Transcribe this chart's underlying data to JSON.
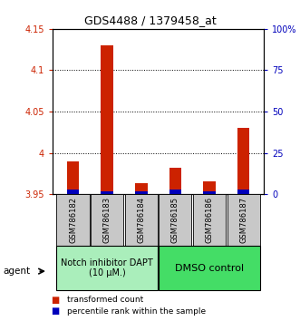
{
  "title": "GDS4488 / 1379458_at",
  "samples": [
    "GSM786182",
    "GSM786183",
    "GSM786184",
    "GSM786185",
    "GSM786186",
    "GSM786187"
  ],
  "red_values": [
    3.99,
    4.13,
    3.963,
    3.982,
    3.965,
    4.03
  ],
  "blue_percentiles": [
    3,
    2,
    2,
    3,
    2,
    3
  ],
  "ylim_left": [
    3.95,
    4.15
  ],
  "ylim_right": [
    0,
    100
  ],
  "yticks_left": [
    3.95,
    4.0,
    4.05,
    4.1,
    4.15
  ],
  "ytick_labels_left": [
    "3.95",
    "4",
    "4.05",
    "4.1",
    "4.15"
  ],
  "yticks_right": [
    0,
    25,
    50,
    75,
    100
  ],
  "ytick_labels_right": [
    "0",
    "25",
    "50",
    "75",
    "100%"
  ],
  "group1_label": "Notch inhibitor DAPT\n(10 μM.)",
  "group2_label": "DMSO control",
  "group1_indices": [
    0,
    1,
    2
  ],
  "group2_indices": [
    3,
    4,
    5
  ],
  "group1_color": "#aaeebb",
  "group2_color": "#44dd66",
  "sample_bg_color": "#c8c8c8",
  "legend_red": "transformed count",
  "legend_blue": "percentile rank within the sample",
  "bar_width": 0.55,
  "agent_label": "agent",
  "red_color": "#cc2200",
  "blue_color": "#0000bb",
  "grid_color": "#000000",
  "title_fontsize": 9,
  "tick_fontsize": 7,
  "sample_fontsize": 6,
  "group_fontsize": 7,
  "legend_fontsize": 6.5
}
